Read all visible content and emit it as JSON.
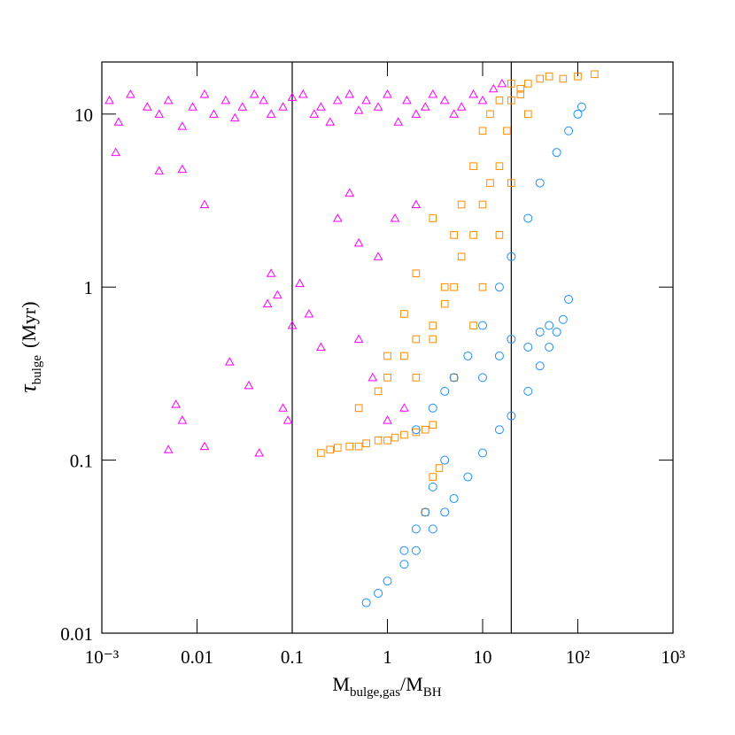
{
  "chart_data": {
    "type": "scatter",
    "x_label": {
      "main": "M",
      "sub": "bulge,gas",
      "main2": "/M",
      "sub2": "BH"
    },
    "y_label": {
      "symbol": "τ",
      "sub": "bulge",
      "unit": "(Myr)"
    },
    "xscale": "log",
    "yscale": "log",
    "xlim": [
      0.001,
      1000
    ],
    "ylim": [
      0.01,
      20
    ],
    "xticks": [
      {
        "value": 0.001,
        "label": "10⁻³"
      },
      0.01,
      0.1,
      1,
      10,
      {
        "value": 100,
        "label": "10²"
      },
      {
        "value": 1000,
        "label": "10³"
      }
    ],
    "yticks": [
      0.01,
      0.1,
      1,
      10
    ],
    "vlines": [
      0.1,
      20
    ],
    "series": [
      {
        "color": "#ff00ff",
        "marker": "triangle",
        "x": [
          0.0012,
          0.0015,
          0.002,
          0.003,
          0.004,
          0.005,
          0.007,
          0.009,
          0.012,
          0.015,
          0.02,
          0.025,
          0.03,
          0.04,
          0.05,
          0.06,
          0.08,
          0.1,
          0.13,
          0.17,
          0.2,
          0.25,
          0.3,
          0.4,
          0.5,
          0.6,
          0.8,
          1,
          1.3,
          1.6,
          2,
          2.5,
          3,
          4,
          5,
          6,
          8,
          10,
          13,
          16,
          0.0014,
          0.004,
          0.007,
          0.012,
          0.022,
          0.006,
          0.007,
          0.012,
          0.005,
          0.035,
          0.045,
          0.055,
          0.06,
          0.07,
          0.09,
          0.12,
          0.15,
          0.2,
          0.3,
          0.4,
          0.5,
          0.7,
          1,
          1.5,
          0.08,
          0.1,
          0.5,
          0.8,
          1.2,
          2
        ],
        "y": [
          12,
          9,
          13,
          11,
          10,
          12,
          8.5,
          11,
          13,
          10,
          12,
          9.5,
          11,
          13,
          12,
          10,
          11,
          12.5,
          13,
          10,
          11,
          9,
          12,
          13,
          10.5,
          12,
          11,
          13,
          9,
          12,
          10,
          11,
          13,
          12,
          10,
          11,
          13,
          12,
          14,
          15,
          6,
          4.7,
          4.8,
          3,
          0.37,
          0.21,
          0.17,
          0.12,
          0.115,
          0.27,
          0.11,
          0.8,
          1.2,
          0.9,
          0.17,
          1.05,
          0.7,
          0.45,
          2.5,
          3.5,
          1.8,
          0.3,
          0.17,
          0.2,
          0.2,
          0.6,
          0.5,
          1.5,
          2.5,
          3
        ]
      },
      {
        "color": "#ff8c00",
        "marker": "square",
        "x": [
          0.2,
          0.25,
          0.3,
          0.4,
          0.5,
          0.6,
          0.8,
          1,
          1.2,
          1.5,
          2,
          2.5,
          3,
          0.5,
          0.8,
          1,
          1.5,
          2,
          3,
          4,
          5,
          6,
          8,
          10,
          12,
          15,
          18,
          20,
          25,
          30,
          40,
          50,
          70,
          100,
          150,
          2,
          3,
          4,
          5,
          6,
          8,
          10,
          12,
          15,
          20,
          25,
          30,
          5,
          8,
          10,
          15,
          20,
          2.5,
          3,
          3.5,
          1,
          1.5,
          2,
          3
        ],
        "y": [
          0.11,
          0.115,
          0.118,
          0.12,
          0.12,
          0.125,
          0.13,
          0.13,
          0.135,
          0.14,
          0.145,
          0.15,
          0.16,
          0.2,
          0.25,
          0.3,
          0.4,
          0.5,
          0.6,
          0.8,
          1,
          1.5,
          2,
          3,
          4,
          5,
          8,
          12,
          14,
          15,
          16,
          16.5,
          16,
          16.5,
          17,
          0.3,
          0.5,
          1,
          2,
          3,
          5,
          8,
          10,
          12,
          15,
          13,
          10,
          0.3,
          0.6,
          1,
          2,
          4,
          0.05,
          0.08,
          0.09,
          0.4,
          0.7,
          1.2,
          2.5
        ]
      },
      {
        "color": "#1e90ff",
        "marker": "circle",
        "x": [
          0.6,
          0.8,
          1,
          1.5,
          2,
          3,
          4,
          5,
          7,
          10,
          15,
          20,
          30,
          40,
          50,
          60,
          70,
          2,
          3,
          4,
          5,
          7,
          10,
          15,
          20,
          30,
          40,
          60,
          80,
          100,
          110,
          1.5,
          2,
          2.5,
          3,
          4,
          10,
          15,
          20,
          30,
          40,
          50,
          80
        ],
        "y": [
          0.015,
          0.017,
          0.02,
          0.025,
          0.03,
          0.04,
          0.05,
          0.06,
          0.08,
          0.11,
          0.15,
          0.18,
          0.25,
          0.35,
          0.45,
          0.55,
          0.65,
          0.15,
          0.2,
          0.25,
          0.3,
          0.4,
          0.6,
          1,
          1.5,
          2.5,
          4,
          6,
          8,
          10,
          11,
          0.03,
          0.04,
          0.05,
          0.07,
          0.1,
          0.3,
          0.4,
          0.5,
          0.45,
          0.55,
          0.6,
          0.85
        ]
      }
    ]
  }
}
